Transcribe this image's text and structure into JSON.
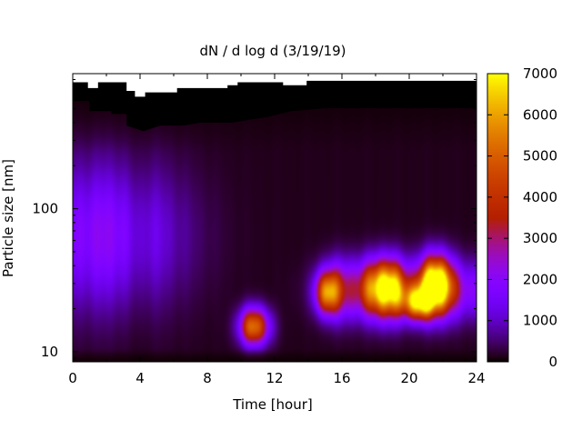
{
  "chart_data": {
    "type": "heatmap",
    "title": "dN / d log d (3/19/19)",
    "xlabel": "Time [hour]",
    "ylabel": "Particle size [nm]",
    "xlim": [
      0,
      24
    ],
    "ylim_nm": [
      8.5,
      880
    ],
    "y_scale": "log",
    "x_ticks": [
      0,
      4,
      8,
      12,
      16,
      20,
      24
    ],
    "x_tick_labels": [
      "0",
      "4",
      "8",
      "12",
      "16",
      "20",
      "24"
    ],
    "y_ticks": [
      10,
      100
    ],
    "y_tick_labels": [
      "10",
      "100"
    ],
    "colorbar": {
      "min": 0,
      "max": 7000,
      "ticks": [
        0,
        1000,
        2000,
        3000,
        4000,
        5000,
        6000,
        7000
      ],
      "tick_labels": [
        "0",
        "1000",
        "2000",
        "3000",
        "4000",
        "5000",
        "6000",
        "7000"
      ],
      "colormap": "gnuplot-pm3d"
    },
    "features": [
      {
        "kind": "broad-mode",
        "t_center": 2,
        "t_sigma": 3,
        "d_center_nm": 65,
        "log_sigma": 0.35,
        "peak": 1900
      },
      {
        "kind": "burst",
        "t_center": 10.8,
        "t_sigma": 0.6,
        "d_center_nm": 15,
        "log_sigma": 0.09,
        "peak": 5200
      },
      {
        "kind": "burst",
        "t_center": 15.1,
        "t_sigma": 0.45,
        "d_center_nm": 26,
        "log_sigma": 0.1,
        "peak": 4700
      },
      {
        "kind": "band",
        "t_start": 15,
        "t_end": 24,
        "d_center_nm": 27,
        "log_sigma": 0.14,
        "peak": 3700
      },
      {
        "kind": "burst",
        "t_center": 18.5,
        "t_sigma": 0.8,
        "d_center_nm": 28,
        "log_sigma": 0.13,
        "peak": 4800
      },
      {
        "kind": "burst",
        "t_center": 21.6,
        "t_sigma": 0.6,
        "d_center_nm": 30,
        "log_sigma": 0.13,
        "peak": 6400
      },
      {
        "kind": "burst",
        "t_center": 20.5,
        "t_sigma": 0.6,
        "d_center_nm": 22,
        "log_sigma": 0.08,
        "peak": 5000
      }
    ],
    "grid": false,
    "legend": "colorbar-right"
  }
}
